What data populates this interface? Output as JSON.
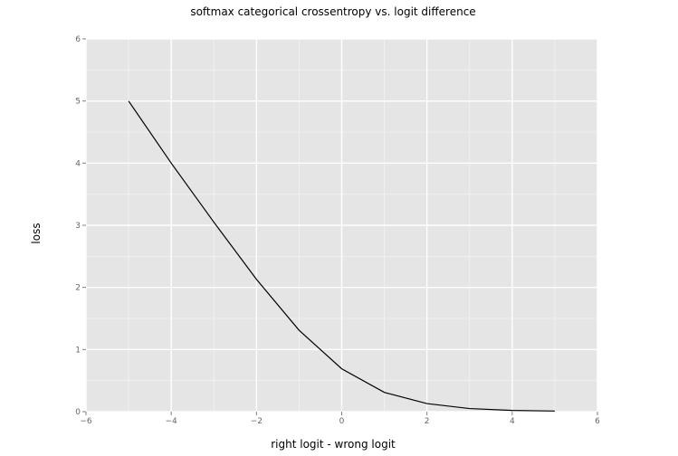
{
  "chart_data": {
    "type": "line",
    "title": "softmax categorical crossentropy vs. logit difference",
    "xlabel": "right logit - wrong logit",
    "ylabel": "loss",
    "xlim": [
      -6,
      6
    ],
    "ylim": [
      0,
      6
    ],
    "x_ticks": [
      -6,
      -4,
      -2,
      0,
      2,
      4,
      6
    ],
    "y_ticks": [
      0,
      1,
      2,
      3,
      4,
      5,
      6
    ],
    "x_tick_labels": [
      "−6",
      "−4",
      "−2",
      "0",
      "2",
      "4",
      "6"
    ],
    "y_tick_labels": [
      "0",
      "1",
      "2",
      "3",
      "4",
      "5",
      "6"
    ],
    "grid": true,
    "legend": "none",
    "series": [
      {
        "x": [
          -5,
          -4,
          -3,
          -2,
          -1,
          0,
          1,
          2,
          3,
          4,
          5
        ],
        "y": [
          5.0,
          4.0,
          3.05,
          2.13,
          1.31,
          0.69,
          0.31,
          0.13,
          0.05,
          0.02,
          0.01
        ]
      }
    ],
    "colors": {
      "panel_background": "#e5e5e5",
      "grid_major": "#ffffff",
      "grid_minor": "#f2f2f2",
      "line": "#000000"
    }
  }
}
